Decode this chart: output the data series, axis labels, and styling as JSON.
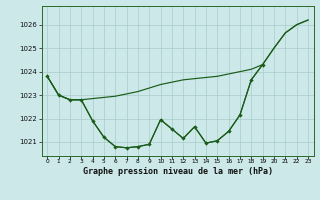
{
  "title": "Graphe pression niveau de la mer (hPa)",
  "background_color": "#cce8e8",
  "grid_color": "#aacccc",
  "line_color": "#1a5c1a",
  "x_labels": [
    "0",
    "1",
    "2",
    "3",
    "4",
    "5",
    "6",
    "7",
    "8",
    "9",
    "10",
    "11",
    "12",
    "13",
    "14",
    "15",
    "16",
    "17",
    "18",
    "19",
    "20",
    "21",
    "22",
    "23"
  ],
  "ylim": [
    1020.4,
    1026.8
  ],
  "yticks": [
    1021,
    1022,
    1023,
    1024,
    1025,
    1026
  ],
  "series_smooth": [
    1023.8,
    1023.0,
    1022.8,
    1022.8,
    1022.85,
    1022.9,
    1022.95,
    1023.05,
    1023.15,
    1023.3,
    1023.45,
    1023.55,
    1023.65,
    1023.7,
    1023.75,
    1023.8,
    1023.9,
    1024.0,
    1024.1,
    1024.3,
    1025.0,
    1025.65,
    1026.0,
    1026.2
  ],
  "series_jagged": [
    1023.8,
    1023.0,
    1022.8,
    1022.8,
    1021.9,
    1021.2,
    1020.8,
    1020.75,
    1020.8,
    1020.9,
    1021.95,
    1021.55,
    1021.15,
    1021.65,
    1020.95,
    1021.05,
    1021.45,
    1022.15,
    1023.65,
    1024.3,
    null,
    null,
    null,
    null
  ],
  "series_diagonal": [
    1023.8,
    1023.0,
    1022.8,
    1022.8,
    1021.9,
    1021.2,
    1020.8,
    1020.75,
    1020.8,
    1020.9,
    1021.95,
    1021.55,
    1021.15,
    1021.65,
    1020.95,
    1021.05,
    1021.45,
    1022.15,
    1023.65,
    1024.3,
    1025.0,
    1025.65,
    1026.0,
    1026.2
  ]
}
